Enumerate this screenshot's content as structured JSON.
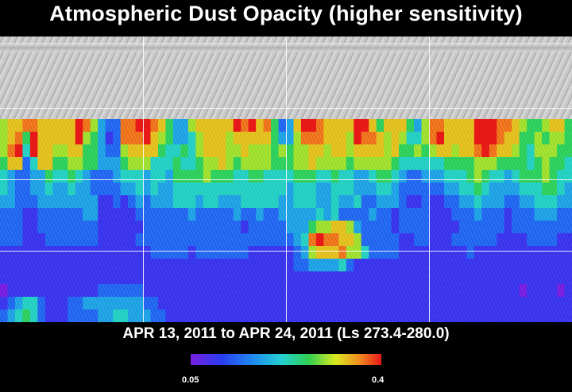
{
  "title": "Atmospheric Dust Opacity (higher sensitivity)",
  "subtitle": "APR 13, 2011 to APR 24, 2011 (Ls 273.4-280.0)",
  "colorbar": {
    "min_label": "0.05",
    "max_label": "0.4",
    "colors": [
      "#7a20e0",
      "#2a3cf0",
      "#1f8cf0",
      "#25d0d0",
      "#30d050",
      "#d8e820",
      "#f09020",
      "#e81818"
    ]
  },
  "dust_map": {
    "rows": [
      "6778877777986322889987533677777989785237998777799757775368877779998876556775",
      "6785977777965312888976533467776777775336888777698876764468977779998775565665",
      "6894977667755322677775445467776676665656677677677776755656776778987765466655",
      "5772477556655333566644454456676566665556676666566666544444455556665555456554",
      "4322335445432223444344355556555445544445554454433455432233344456544345556544",
      "4322334334332222334343344444444444444434443344433344322222233445433334445543",
      "3322233333333112123233344434433344444334443343342233321121122334333223344433",
      "2221122222233111112222222322222322322333334342222322122221112223222122233322",
      "2221122222222111111222222222222212222233356677632222122221111222222122222222",
      "2221112222222111112222222222222222222223489887762222211221112222221111222211",
      "1111111111111111111122222122222221111112367778664222211111111121111111111111",
      "1111111111111111111111111111111111111112233334211111111111111111111111111111",
      "1111111111111111111111111111111111111111111111111111111111111111111111111111",
      "0111111111111222222111111111111111111111111111111111111111111111111110111101",
      "1234421112233333333221111111111111111111111111111111111111111111111111111111",
      "2345421112222334433322111111111111111111111111111111111111111111111111111111"
    ],
    "grid": {
      "lon_lines": 4,
      "lat_lines": 3
    }
  }
}
